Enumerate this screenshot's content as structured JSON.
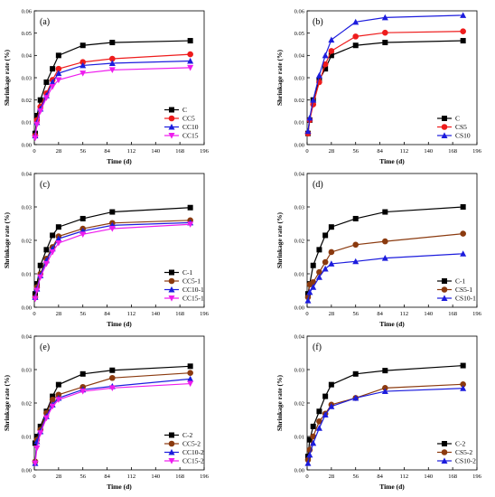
{
  "chart_data": [
    {
      "type": "line",
      "panel": "(a)",
      "xlabel": "Time (d)",
      "ylabel": "Shrinkage rate (%)",
      "xlim": [
        0,
        196
      ],
      "ylim": [
        0,
        0.06
      ],
      "xticks": [
        0,
        28,
        56,
        84,
        112,
        140,
        168,
        196
      ],
      "yticks": [
        0,
        0.01,
        0.02,
        0.03,
        0.04,
        0.05,
        0.06
      ],
      "ytick_labels": [
        "0.00",
        "0.01",
        "0.02",
        "0.03",
        "0.04",
        "0.05",
        "0.06"
      ],
      "legend_position": "bottom-right",
      "series": [
        {
          "name": "C",
          "color": "#000000",
          "marker": "square",
          "x": [
            1,
            3,
            7,
            14,
            21,
            28,
            56,
            90,
            180
          ],
          "y": [
            0.005,
            0.013,
            0.02,
            0.028,
            0.034,
            0.04,
            0.0445,
            0.0458,
            0.0466
          ]
        },
        {
          "name": "CC5",
          "color": "#ee1c1c",
          "marker": "circle",
          "x": [
            1,
            3,
            7,
            14,
            21,
            28,
            56,
            90,
            180
          ],
          "y": [
            0.004,
            0.011,
            0.017,
            0.023,
            0.029,
            0.034,
            0.037,
            0.0385,
            0.0405
          ]
        },
        {
          "name": "CC10",
          "color": "#1c1cdd",
          "marker": "triangle-up",
          "x": [
            1,
            3,
            7,
            14,
            21,
            28,
            56,
            90,
            180
          ],
          "y": [
            0.004,
            0.01,
            0.016,
            0.022,
            0.028,
            0.032,
            0.0355,
            0.0365,
            0.0375
          ]
        },
        {
          "name": "CC15",
          "color": "#ee1cee",
          "marker": "triangle-down",
          "x": [
            1,
            3,
            7,
            14,
            21,
            28,
            56,
            90,
            180
          ],
          "y": [
            0.003,
            0.009,
            0.015,
            0.021,
            0.026,
            0.029,
            0.032,
            0.0335,
            0.0345
          ]
        }
      ]
    },
    {
      "type": "line",
      "panel": "(b)",
      "xlabel": "Time (d)",
      "ylabel": "Shrinkage rate (%)",
      "xlim": [
        0,
        196
      ],
      "ylim": [
        0,
        0.06
      ],
      "xticks": [
        0,
        28,
        56,
        84,
        112,
        140,
        168,
        196
      ],
      "yticks": [
        0,
        0.01,
        0.02,
        0.03,
        0.04,
        0.05,
        0.06
      ],
      "ytick_labels": [
        "0.00",
        "0.01",
        "0.02",
        "0.03",
        "0.04",
        "0.05",
        "0.06"
      ],
      "legend_position": "bottom-right",
      "series": [
        {
          "name": "C",
          "color": "#000000",
          "marker": "square",
          "x": [
            1,
            3,
            7,
            14,
            21,
            28,
            56,
            90,
            180
          ],
          "y": [
            0.005,
            0.011,
            0.02,
            0.029,
            0.034,
            0.04,
            0.0445,
            0.0458,
            0.0466
          ]
        },
        {
          "name": "CS5",
          "color": "#ee1c1c",
          "marker": "circle",
          "x": [
            1,
            3,
            7,
            14,
            21,
            28,
            56,
            90,
            180
          ],
          "y": [
            0.005,
            0.011,
            0.018,
            0.028,
            0.036,
            0.042,
            0.0485,
            0.0502,
            0.0508
          ]
        },
        {
          "name": "CS10",
          "color": "#1c1cdd",
          "marker": "triangle-up",
          "x": [
            1,
            3,
            7,
            14,
            21,
            28,
            56,
            90,
            180
          ],
          "y": [
            0.006,
            0.012,
            0.02,
            0.031,
            0.04,
            0.047,
            0.055,
            0.057,
            0.058
          ]
        }
      ]
    },
    {
      "type": "line",
      "panel": "(c)",
      "xlabel": "Time (d)",
      "ylabel": "Shrinkage rate (%)",
      "xlim": [
        0,
        196
      ],
      "ylim": [
        0,
        0.04
      ],
      "xticks": [
        0,
        28,
        56,
        84,
        112,
        140,
        168,
        196
      ],
      "yticks": [
        0,
        0.01,
        0.02,
        0.03,
        0.04
      ],
      "ytick_labels": [
        "0.00",
        "0.01",
        "0.02",
        "0.03",
        "0.04"
      ],
      "legend_position": "bottom-right",
      "series": [
        {
          "name": "C-1",
          "color": "#000000",
          "marker": "square",
          "x": [
            1,
            3,
            7,
            14,
            21,
            28,
            56,
            90,
            180
          ],
          "y": [
            0.004,
            0.007,
            0.0125,
            0.0172,
            0.0215,
            0.024,
            0.0265,
            0.0285,
            0.0298
          ]
        },
        {
          "name": "CC5-1",
          "color": "#8b3a0f",
          "marker": "circle",
          "x": [
            1,
            3,
            7,
            14,
            21,
            28,
            56,
            90,
            180
          ],
          "y": [
            0.003,
            0.006,
            0.01,
            0.0145,
            0.018,
            0.0212,
            0.0235,
            0.0252,
            0.026
          ]
        },
        {
          "name": "CC10-1",
          "color": "#1c1cdd",
          "marker": "triangle-up",
          "x": [
            1,
            3,
            7,
            14,
            21,
            28,
            56,
            90,
            180
          ],
          "y": [
            0.003,
            0.0055,
            0.0095,
            0.014,
            0.0175,
            0.0205,
            0.0228,
            0.0245,
            0.0253
          ]
        },
        {
          "name": "CC15-1",
          "color": "#ee1cee",
          "marker": "triangle-down",
          "x": [
            1,
            3,
            7,
            14,
            21,
            28,
            56,
            90,
            180
          ],
          "y": [
            0.0025,
            0.005,
            0.009,
            0.013,
            0.0165,
            0.0192,
            0.0218,
            0.0235,
            0.0248
          ]
        }
      ]
    },
    {
      "type": "line",
      "panel": "(d)",
      "xlabel": "Time (d)",
      "ylabel": "Shrinkage rate (%)",
      "xlim": [
        0,
        196
      ],
      "ylim": [
        0,
        0.04
      ],
      "xticks": [
        0,
        28,
        56,
        84,
        112,
        140,
        168,
        196
      ],
      "yticks": [
        0,
        0.01,
        0.02,
        0.03,
        0.04
      ],
      "ytick_labels": [
        "0.00",
        "0.01",
        "0.02",
        "0.03",
        "0.04"
      ],
      "legend_position": "bottom-right",
      "series": [
        {
          "name": "C-1",
          "color": "#000000",
          "marker": "square",
          "x": [
            1,
            3,
            7,
            14,
            21,
            28,
            56,
            90,
            180
          ],
          "y": [
            0.004,
            0.007,
            0.0125,
            0.0172,
            0.0215,
            0.024,
            0.0265,
            0.0285,
            0.03
          ]
        },
        {
          "name": "CS5-1",
          "color": "#8b3a0f",
          "marker": "circle",
          "x": [
            1,
            3,
            7,
            14,
            21,
            28,
            56,
            90,
            180
          ],
          "y": [
            0.003,
            0.0068,
            0.0075,
            0.0105,
            0.0135,
            0.0165,
            0.0187,
            0.0197,
            0.022
          ]
        },
        {
          "name": "CS10-1",
          "color": "#1c1cdd",
          "marker": "triangle-up",
          "x": [
            1,
            3,
            7,
            14,
            21,
            28,
            56,
            90,
            180
          ],
          "y": [
            0.002,
            0.0045,
            0.006,
            0.009,
            0.0115,
            0.013,
            0.0137,
            0.0147,
            0.016
          ]
        }
      ]
    },
    {
      "type": "line",
      "panel": "(e)",
      "xlabel": "Time (d)",
      "ylabel": "Shrinkage rate (%)",
      "xlim": [
        0,
        196
      ],
      "ylim": [
        0,
        0.04
      ],
      "xticks": [
        0,
        28,
        56,
        84,
        112,
        140,
        168,
        196
      ],
      "yticks": [
        0,
        0.01,
        0.02,
        0.03,
        0.04
      ],
      "ytick_labels": [
        "0.00",
        "0.01",
        "0.02",
        "0.03",
        "0.04"
      ],
      "legend_position": "bottom-right",
      "series": [
        {
          "name": "C-2",
          "color": "#000000",
          "marker": "square",
          "x": [
            1,
            3,
            7,
            14,
            21,
            28,
            56,
            90,
            180
          ],
          "y": [
            0.008,
            0.01,
            0.013,
            0.0175,
            0.022,
            0.0255,
            0.0287,
            0.0298,
            0.031
          ]
        },
        {
          "name": "CC5-2",
          "color": "#8b3a0f",
          "marker": "circle",
          "x": [
            1,
            3,
            7,
            14,
            21,
            28,
            56,
            90,
            180
          ],
          "y": [
            0.0025,
            0.009,
            0.012,
            0.017,
            0.021,
            0.0225,
            0.0248,
            0.0275,
            0.029
          ]
        },
        {
          "name": "CC10-2",
          "color": "#1c1cdd",
          "marker": "triangle-up",
          "x": [
            1,
            3,
            7,
            14,
            21,
            28,
            56,
            90,
            180
          ],
          "y": [
            0.002,
            0.0085,
            0.0115,
            0.016,
            0.0195,
            0.0215,
            0.024,
            0.025,
            0.0272
          ]
        },
        {
          "name": "CC15-2",
          "color": "#ee1cee",
          "marker": "triangle-down",
          "x": [
            1,
            3,
            7,
            14,
            21,
            28,
            56,
            90,
            180
          ],
          "y": [
            0.002,
            0.0065,
            0.011,
            0.0155,
            0.019,
            0.021,
            0.0235,
            0.0245,
            0.0258
          ]
        }
      ]
    },
    {
      "type": "line",
      "panel": "(f)",
      "xlabel": "Time (d)",
      "ylabel": "Shrinkage rate (%)",
      "xlim": [
        0,
        196
      ],
      "ylim": [
        0,
        0.04
      ],
      "xticks": [
        0,
        28,
        56,
        84,
        112,
        140,
        168,
        196
      ],
      "yticks": [
        0,
        0.01,
        0.02,
        0.03,
        0.04
      ],
      "ytick_labels": [
        "0.00",
        "0.01",
        "0.02",
        "0.03",
        "0.04"
      ],
      "legend_position": "bottom-right",
      "series": [
        {
          "name": "C-2",
          "color": "#000000",
          "marker": "square",
          "x": [
            1,
            3,
            7,
            14,
            21,
            28,
            56,
            90,
            180
          ],
          "y": [
            0.004,
            0.009,
            0.013,
            0.0175,
            0.022,
            0.0255,
            0.0287,
            0.0297,
            0.0312
          ]
        },
        {
          "name": "CS5-2",
          "color": "#8b3a0f",
          "marker": "circle",
          "x": [
            1,
            3,
            7,
            14,
            21,
            28,
            56,
            90,
            180
          ],
          "y": [
            0.003,
            0.006,
            0.01,
            0.0145,
            0.0168,
            0.0195,
            0.0215,
            0.0245,
            0.0256
          ]
        },
        {
          "name": "CS10-2",
          "color": "#1c1cdd",
          "marker": "triangle-up",
          "x": [
            1,
            3,
            7,
            14,
            21,
            28,
            56,
            90,
            180
          ],
          "y": [
            0.002,
            0.0045,
            0.008,
            0.0125,
            0.0165,
            0.019,
            0.0215,
            0.0235,
            0.0244
          ]
        }
      ]
    }
  ]
}
